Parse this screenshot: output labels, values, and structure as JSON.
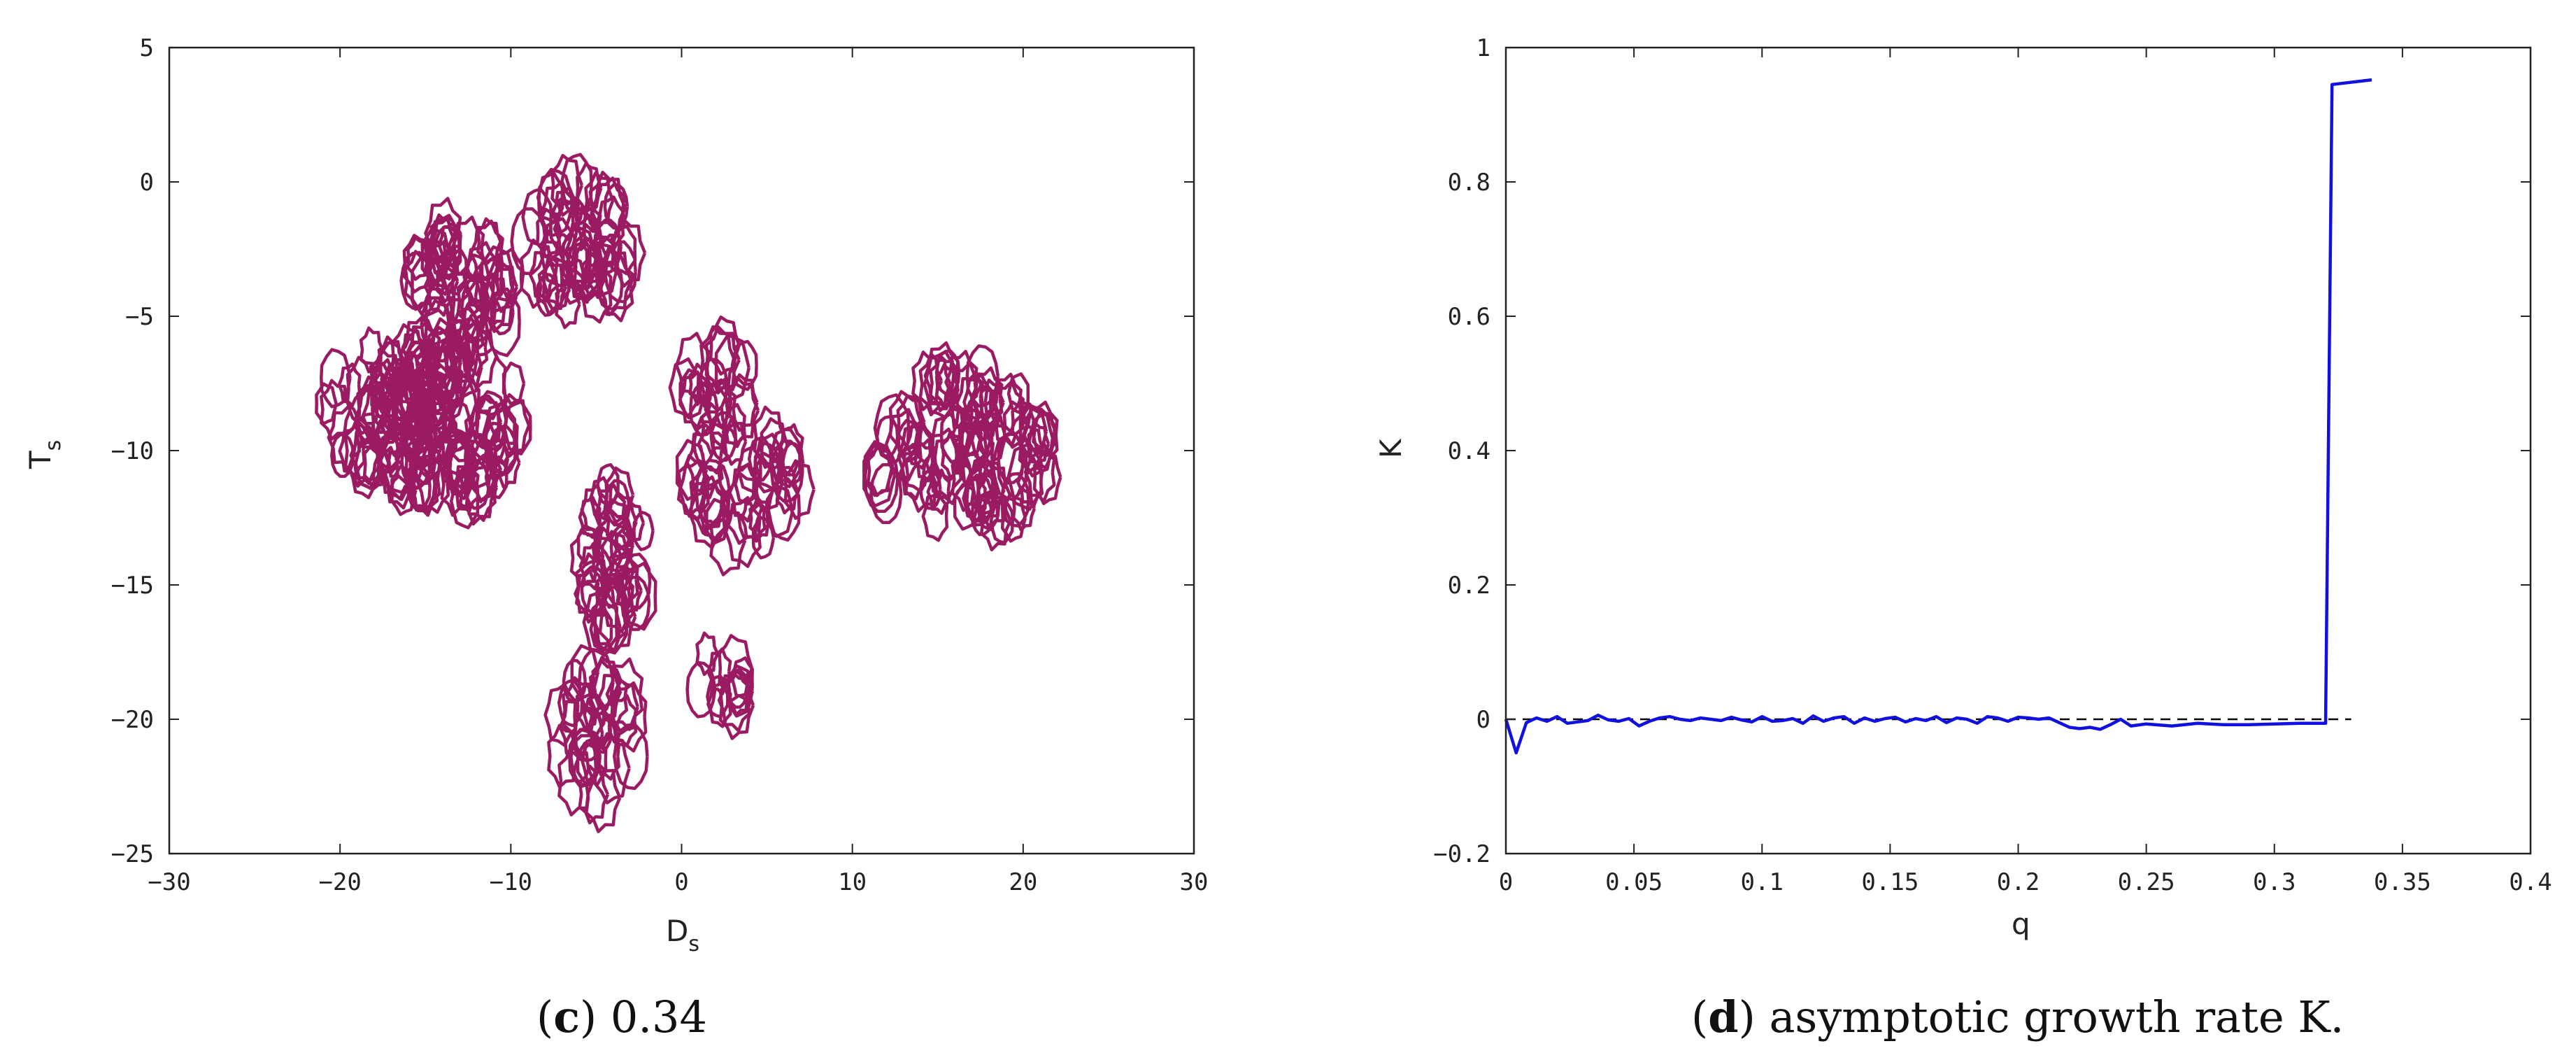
{
  "chart_data": [
    {
      "type": "line",
      "caption_label": "c",
      "caption_text": "0.34",
      "xlabel": "D",
      "xlabel_sub": "s",
      "ylabel": "T",
      "ylabel_sub": "s",
      "xlim": [
        -30,
        30
      ],
      "ylim": [
        -25,
        5
      ],
      "xticks": [
        -30,
        -20,
        -10,
        0,
        10,
        20,
        30
      ],
      "yticks": [
        5,
        0,
        -5,
        -10,
        -15,
        -20,
        -25
      ],
      "color": "#9b1b63",
      "clusters": [
        {
          "cx": -14,
          "cy": -9,
          "rx": 5,
          "ry": 3,
          "n": 90
        },
        {
          "cx": -17.5,
          "cy": -8.5,
          "rx": 3.5,
          "ry": 2.5,
          "n": 40
        },
        {
          "cx": -13,
          "cy": -4,
          "rx": 3,
          "ry": 2.5,
          "n": 45
        },
        {
          "cx": -6,
          "cy": -2.5,
          "rx": 3,
          "ry": 2.5,
          "n": 45
        },
        {
          "cx": -4,
          "cy": -14,
          "rx": 2,
          "ry": 3,
          "n": 35
        },
        {
          "cx": -5,
          "cy": -20.5,
          "rx": 2.5,
          "ry": 2.5,
          "n": 30
        },
        {
          "cx": 3.5,
          "cy": -11,
          "rx": 3.5,
          "ry": 2.5,
          "n": 40
        },
        {
          "cx": 2,
          "cy": -7.5,
          "rx": 2,
          "ry": 1.5,
          "n": 15
        },
        {
          "cx": 2.5,
          "cy": -18.5,
          "rx": 1.5,
          "ry": 1.5,
          "n": 12
        },
        {
          "cx": 16.5,
          "cy": -10,
          "rx": 5.5,
          "ry": 3,
          "n": 80
        }
      ]
    },
    {
      "type": "line",
      "caption_label": "d",
      "caption_text": "asymptotic growth rate K.",
      "xlabel": "q",
      "ylabel": "K",
      "xlim": [
        0,
        0.4
      ],
      "ylim": [
        -0.2,
        1
      ],
      "xticks": [
        0,
        0.05,
        0.1,
        0.15,
        0.2,
        0.25,
        0.3,
        0.35,
        0.4
      ],
      "yticks": [
        1,
        0.8,
        0.6,
        0.4,
        0.2,
        0,
        -0.2
      ],
      "series": [
        {
          "color": "#1010e0",
          "x": [
            0,
            0.004,
            0.008,
            0.012,
            0.016,
            0.02,
            0.024,
            0.028,
            0.032,
            0.036,
            0.04,
            0.044,
            0.048,
            0.052,
            0.056,
            0.06,
            0.064,
            0.068,
            0.072,
            0.076,
            0.08,
            0.084,
            0.088,
            0.092,
            0.096,
            0.1,
            0.104,
            0.108,
            0.112,
            0.116,
            0.12,
            0.124,
            0.128,
            0.132,
            0.136,
            0.14,
            0.144,
            0.148,
            0.152,
            0.156,
            0.16,
            0.164,
            0.168,
            0.172,
            0.176,
            0.18,
            0.184,
            0.188,
            0.192,
            0.196,
            0.2,
            0.204,
            0.208,
            0.212,
            0.216,
            0.22,
            0.224,
            0.228,
            0.232,
            0.236,
            0.24,
            0.244,
            0.25,
            0.26,
            0.27,
            0.28,
            0.29,
            0.3,
            0.31,
            0.32,
            0.3225,
            0.338
          ],
          "y": [
            0,
            -0.05,
            -0.005,
            0.002,
            -0.003,
            0.004,
            -0.006,
            -0.004,
            -0.002,
            0.006,
            -0.001,
            -0.003,
            0.001,
            -0.01,
            -0.003,
            0.002,
            0.004,
            0.0,
            -0.002,
            0.002,
            0.0,
            -0.002,
            0.003,
            -0.001,
            -0.004,
            0.004,
            -0.003,
            -0.002,
            0.001,
            -0.006,
            0.005,
            -0.003,
            0.002,
            0.004,
            -0.006,
            0.002,
            -0.003,
            0.001,
            0.003,
            -0.004,
            0.001,
            -0.002,
            0.004,
            -0.005,
            0.002,
            0.0,
            -0.006,
            0.004,
            0.002,
            -0.003,
            0.003,
            0.002,
            0.0,
            0.002,
            -0.005,
            -0.012,
            -0.014,
            -0.012,
            -0.015,
            -0.008,
            0.0,
            -0.01,
            -0.007,
            -0.01,
            -0.006,
            -0.008,
            -0.008,
            -0.007,
            -0.006,
            -0.006,
            0.945,
            0.952
          ]
        },
        {
          "color": "#000000",
          "dashed": true,
          "x": [
            0,
            0.33
          ],
          "y": [
            0,
            0
          ]
        }
      ]
    }
  ]
}
